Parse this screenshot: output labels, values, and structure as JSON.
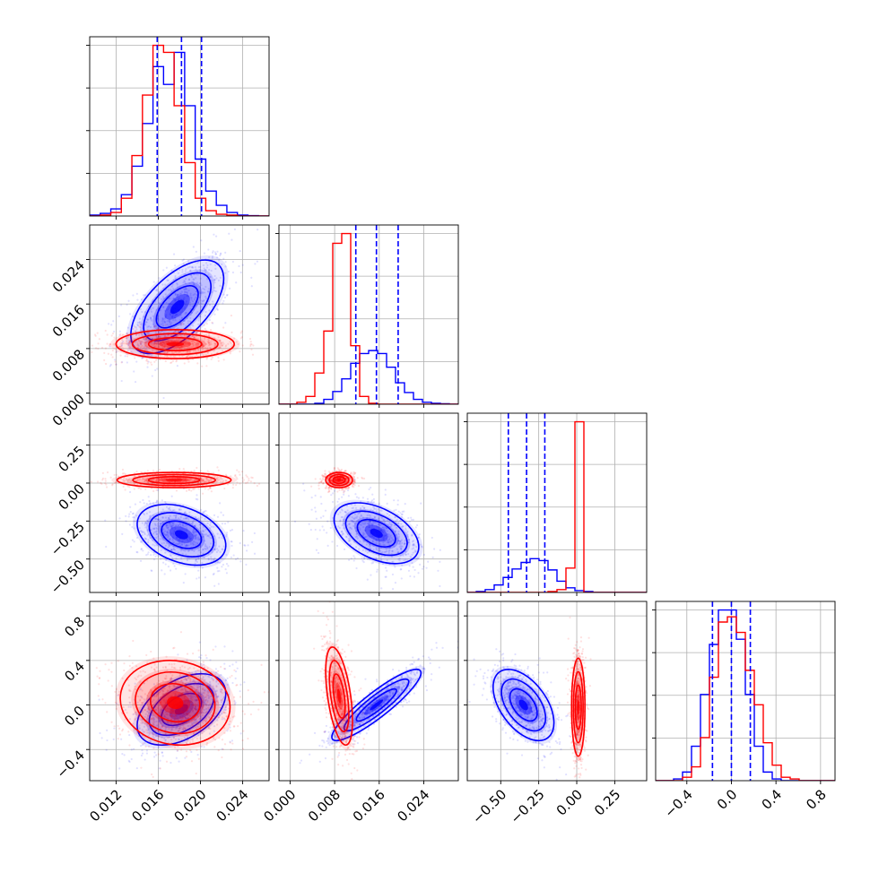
{
  "chart_data": {
    "type": "corner",
    "figure": "triangle corner plot of 4 parameters, two posterior sample sets overlaid",
    "series": [
      {
        "color": "#0000ff"
      },
      {
        "color": "#ff0000"
      }
    ],
    "parameters": [
      {
        "index": 0,
        "range": [
          0.0095,
          0.0265
        ],
        "ticks": [
          0.012,
          0.016,
          0.02,
          0.024
        ],
        "tick_labels": [
          "0.012",
          "0.016",
          "0.020",
          "0.024"
        ]
      },
      {
        "index": 1,
        "range": [
          -0.002,
          0.0302
        ],
        "ticks": [
          0.0,
          0.008,
          0.016,
          0.024
        ],
        "tick_labels": [
          "0.000",
          "0.008",
          "0.016",
          "0.024"
        ]
      },
      {
        "index": 2,
        "range": [
          -0.72,
          0.46
        ],
        "ticks": [
          -0.5,
          -0.25,
          0.0,
          0.25
        ],
        "tick_labels": [
          "−0.50",
          "−0.25",
          "0.00",
          "0.25"
        ]
      },
      {
        "index": 3,
        "range": [
          -0.68,
          0.93
        ],
        "ticks": [
          -0.4,
          0.0,
          0.4,
          0.8
        ],
        "tick_labels": [
          "−0.4",
          "0.0",
          "0.4",
          "0.8"
        ]
      }
    ],
    "quantile_lines": [
      [
        0.0159,
        0.0182,
        0.0201
      ],
      [
        0.0118,
        0.0155,
        0.0194
      ],
      [
        -0.45,
        -0.33,
        -0.21
      ],
      [
        -0.17,
        0.0,
        0.17
      ]
    ],
    "histograms": {
      "blue": [
        {
          "range": [
            0.0095,
            0.0265
          ],
          "counts": [
            0.5,
            1.5,
            4,
            12,
            28,
            52,
            84,
            74,
            92,
            62,
            32,
            14,
            6,
            2,
            0.5,
            0.2,
            0
          ]
        },
        {
          "range": [
            -0.002,
            0.0302
          ],
          "counts": [
            0,
            0,
            0,
            0,
            1,
            5,
            13,
            26,
            42,
            52,
            55,
            52,
            38,
            22,
            12,
            5,
            2,
            1,
            0.5,
            0
          ]
        },
        {
          "range": [
            -0.72,
            0.46
          ],
          "counts": [
            0,
            1,
            3,
            8,
            16,
            25,
            32,
            36,
            34,
            24,
            12,
            5,
            2,
            1,
            0,
            0,
            0,
            0,
            0,
            0
          ]
        },
        {
          "range": [
            -0.68,
            0.93
          ],
          "counts": [
            0,
            0,
            1,
            5,
            20,
            50,
            79,
            99,
            99,
            82,
            50,
            20,
            5,
            1,
            0,
            0,
            0,
            0,
            0,
            0
          ]
        }
      ],
      "red": [
        {
          "range": [
            0.0095,
            0.0265
          ],
          "counts": [
            0,
            0.5,
            2,
            10,
            34,
            68,
            96,
            92,
            62,
            30,
            10,
            3,
            1,
            0.5,
            0,
            0,
            0
          ]
        },
        {
          "range": [
            -0.002,
            0.0302
          ],
          "counts": [
            0,
            0,
            2,
            8,
            32,
            75,
            165,
            175,
            60,
            8,
            1,
            0,
            0,
            0,
            0,
            0,
            0,
            0,
            0,
            0
          ]
        },
        {
          "range": [
            -0.72,
            0.46
          ],
          "counts": [
            0,
            0,
            0,
            0,
            0,
            0,
            0,
            0,
            0,
            1,
            3,
            26,
            182,
            0,
            0,
            0,
            0,
            0,
            0,
            0
          ]
        },
        {
          "range": [
            -0.68,
            0.93
          ],
          "counts": [
            0,
            0,
            0,
            2,
            8,
            25,
            60,
            92,
            95,
            86,
            64,
            44,
            22,
            9,
            2,
            1,
            0,
            0,
            0,
            0
          ]
        }
      ]
    },
    "blobs_2d": {
      "p1_vs_p0": {
        "blue": {
          "center": [
            0.0178,
            0.0155
          ],
          "sigma": [
            0.0022,
            0.0042
          ],
          "rho": 0.6
        },
        "red": {
          "center": [
            0.0176,
            0.0088
          ],
          "sigma": [
            0.0028,
            0.0013
          ],
          "rho": 0.0
        }
      },
      "p2_vs_p0": {
        "blue": {
          "center": [
            0.0182,
            -0.34
          ],
          "sigma": [
            0.0021,
            0.1
          ],
          "rho": -0.35
        },
        "red": {
          "center": [
            0.0175,
            0.02
          ],
          "sigma": [
            0.0027,
            0.025
          ],
          "rho": 0.0
        }
      },
      "p3_vs_p0": {
        "blue": {
          "center": [
            0.0182,
            -0.04
          ],
          "sigma": [
            0.0021,
            0.16
          ],
          "rho": 0.45
        },
        "red": {
          "center": [
            0.0176,
            0.02
          ],
          "sigma": [
            0.0026,
            0.19
          ],
          "rho": -0.1
        }
      },
      "p2_vs_p1": {
        "blue": {
          "center": [
            0.0155,
            -0.33
          ],
          "sigma": [
            0.0038,
            0.1
          ],
          "rho": -0.45
        },
        "red": {
          "center": [
            0.0088,
            0.02
          ],
          "sigma": [
            0.0012,
            0.025
          ],
          "rho": 0.0
        }
      },
      "p3_vs_p1": {
        "blue": {
          "center": [
            0.0155,
            0.0
          ],
          "sigma": [
            0.004,
            0.16
          ],
          "rho": 0.9
        },
        "red": {
          "center": [
            0.0088,
            0.08
          ],
          "sigma": [
            0.0012,
            0.22
          ],
          "rho": -0.5
        }
      },
      "p3_vs_p2": {
        "blue": {
          "center": [
            -0.35,
            0.0
          ],
          "sigma": [
            0.1,
            0.16
          ],
          "rho": -0.5
        },
        "red": {
          "center": [
            0.01,
            -0.02
          ],
          "sigma": [
            0.022,
            0.22
          ],
          "rho": 0.0
        }
      }
    }
  }
}
